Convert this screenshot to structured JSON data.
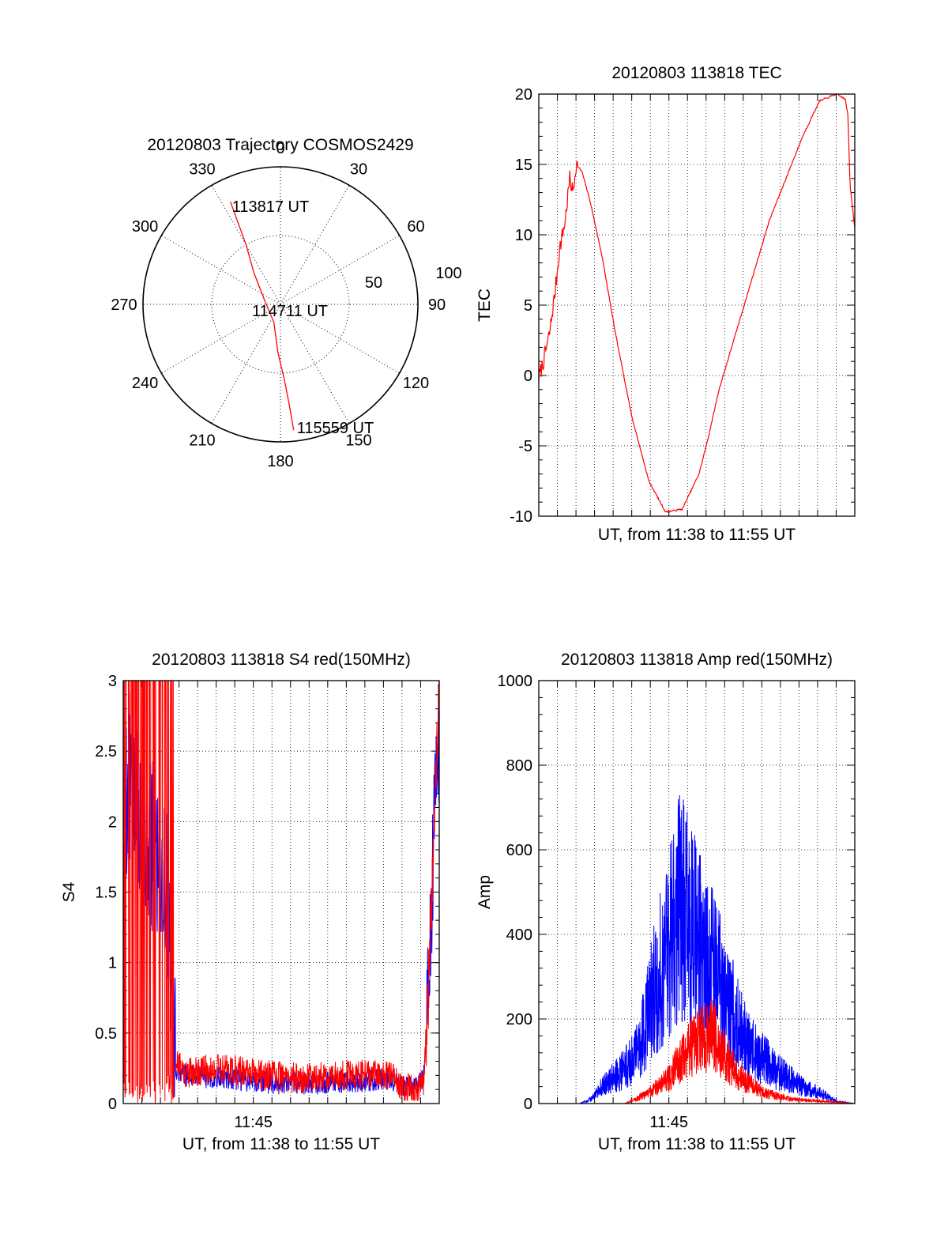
{
  "chart_data": [
    {
      "type": "polar",
      "title": "20120803 Trajectory COSMOS2429",
      "azimuth_labels": [
        "0",
        "30",
        "60",
        "90",
        "120",
        "150",
        "180",
        "210",
        "240",
        "270",
        "300",
        "330"
      ],
      "radial_labels": [
        "50",
        "100"
      ],
      "rlim": [
        0,
        100
      ],
      "grid": true,
      "series": [
        {
          "color": "#ff0000",
          "points": [
            {
              "az": 334,
              "r": 83
            },
            {
              "az": 330,
              "r": 50
            },
            {
              "az": 320,
              "r": 30
            },
            {
              "az": 285,
              "r": 12
            },
            {
              "az": 200,
              "r": 14
            },
            {
              "az": 183,
              "r": 35
            },
            {
              "az": 177,
              "r": 55
            },
            {
              "az": 175,
              "r": 73
            },
            {
              "az": 174,
              "r": 92
            }
          ]
        }
      ],
      "annotations": [
        "113817 UT",
        "114711 UT",
        "115559 UT"
      ]
    },
    {
      "type": "line",
      "title": "20120803 113818 TEC",
      "xlabel": "UT, from 11:38 to 11:55 UT",
      "ylabel": "TEC",
      "xlim": [
        11.6333,
        11.9167
      ],
      "ylim": [
        -10,
        20
      ],
      "yticks": [
        "-10",
        "-5",
        "0",
        "5",
        "10",
        "15",
        "20"
      ],
      "xticks": [],
      "grid": true,
      "series": [
        {
          "color": "#ff0000",
          "x": [
            11.6333,
            11.6375,
            11.643,
            11.648,
            11.652,
            11.657,
            11.661,
            11.664,
            11.6667,
            11.672,
            11.679,
            11.69,
            11.702,
            11.717,
            11.732,
            11.747,
            11.762,
            11.777,
            11.785,
            11.795,
            11.81,
            11.825,
            11.84,
            11.855,
            11.87,
            11.885,
            11.9,
            11.905,
            11.9083,
            11.9105,
            11.9125,
            11.9167
          ],
          "y": [
            -0.2,
            1,
            3,
            6,
            9,
            11,
            14,
            13,
            15,
            14.5,
            12.5,
            8.5,
            3,
            -3,
            -7.5,
            -9.7,
            -9.5,
            -7,
            -4.5,
            -1,
            3,
            7,
            11,
            14,
            17,
            19.5,
            20,
            19.8,
            19.6,
            18.5,
            13.5,
            10.5
          ]
        }
      ]
    },
    {
      "type": "line",
      "title": "20120803 113818 S4 red(150MHz)",
      "xlabel": "UT, from 11:38 to 11:55 UT",
      "ylabel": "S4",
      "xlim": [
        11.6333,
        11.9167
      ],
      "ylim": [
        0,
        3
      ],
      "yticks": [
        "0",
        "0.5",
        "1",
        "1.5",
        "2",
        "2.5",
        "3"
      ],
      "xticks": [
        "11:45"
      ],
      "grid": true,
      "series": [
        {
          "color": "#0000ff",
          "x": [
            11.6333,
            11.64,
            11.65,
            11.66,
            11.667,
            11.672,
            11.678,
            11.68,
            11.69,
            11.72,
            11.76,
            11.79,
            11.83,
            11.87,
            11.895,
            11.903,
            11.908,
            11.912,
            11.9167
          ],
          "y": [
            2.1,
            2.3,
            2.0,
            1.8,
            1.7,
            1.5,
            0.9,
            0.25,
            0.2,
            0.18,
            0.15,
            0.14,
            0.15,
            0.17,
            0.1,
            0.2,
            0.9,
            2.0,
            2.6
          ]
        },
        {
          "color": "#ff0000",
          "x": [
            11.68,
            11.69,
            11.72,
            11.76,
            11.79,
            11.83,
            11.87,
            11.895,
            11.903,
            11.908,
            11.912,
            11.9167
          ],
          "y": [
            0.3,
            0.22,
            0.25,
            0.2,
            0.18,
            0.2,
            0.2,
            0.08,
            0.15,
            1.0,
            2.0,
            3.0
          ]
        }
      ]
    },
    {
      "type": "line",
      "title": "20120803 113818 Amp red(150MHz)",
      "xlabel": "UT, from 11:38 to 11:55 UT",
      "ylabel": "Amp",
      "xlim": [
        11.6333,
        11.9167
      ],
      "ylim": [
        0,
        1000
      ],
      "yticks": [
        "0",
        "200",
        "400",
        "600",
        "800",
        "1000"
      ],
      "xticks": [
        "11:45"
      ],
      "grid": true,
      "series": [
        {
          "color": "#0000ff",
          "x": [
            11.6333,
            11.67,
            11.68,
            11.69,
            11.705,
            11.72,
            11.735,
            11.75,
            11.76,
            11.775,
            11.79,
            11.805,
            11.82,
            11.845,
            11.87,
            11.89,
            11.9,
            11.9167
          ],
          "y": [
            0,
            0,
            10,
            40,
            70,
            110,
            250,
            380,
            480,
            390,
            320,
            230,
            140,
            80,
            40,
            20,
            5,
            0
          ]
        },
        {
          "color": "#ff0000",
          "x": [
            11.6333,
            11.71,
            11.72,
            11.735,
            11.75,
            11.76,
            11.775,
            11.79,
            11.8,
            11.815,
            11.835,
            11.86,
            11.89,
            11.9167
          ],
          "y": [
            0,
            0,
            10,
            30,
            60,
            100,
            150,
            160,
            110,
            60,
            25,
            10,
            5,
            0
          ]
        }
      ]
    }
  ]
}
